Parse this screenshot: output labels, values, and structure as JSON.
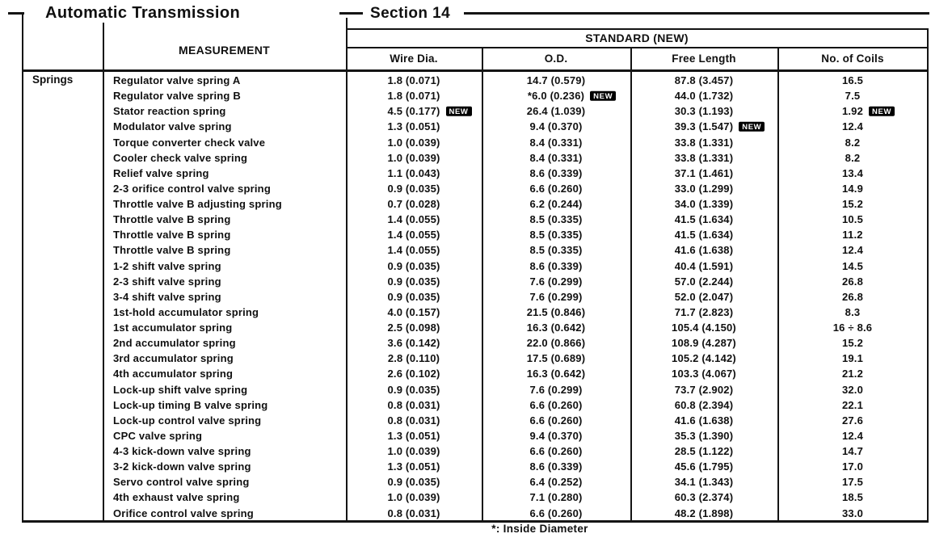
{
  "page": {
    "title_left": "Automatic Transmission",
    "title_right": "Section 14",
    "footnote": "*: Inside Diameter"
  },
  "table": {
    "group_label": "Springs",
    "measurement_header": "MEASUREMENT",
    "standard_header": "STANDARD (NEW)",
    "columns": [
      "Wire Dia.",
      "O.D.",
      "Free Length",
      "No. of Coils"
    ],
    "new_badge": "NEW",
    "badge_bg": "#000000",
    "badge_fg": "#ffffff",
    "rows": [
      {
        "name": "Regulator valve spring A",
        "wire_dia": "1.8 (0.071)",
        "od": "14.7 (0.579)",
        "free_length": "87.8 (3.457)",
        "coils": "16.5"
      },
      {
        "name": "Regulator valve spring B",
        "wire_dia": "1.8 (0.071)",
        "od": "*6.0 (0.236)",
        "free_length": "44.0 (1.732)",
        "coils": "7.5",
        "new": [
          "od"
        ]
      },
      {
        "name": "Stator reaction spring",
        "wire_dia": "4.5 (0.177)",
        "od": "26.4 (1.039)",
        "free_length": "30.3 (1.193)",
        "coils": "1.92",
        "new": [
          "wire_dia",
          "coils"
        ]
      },
      {
        "name": "Modulator valve spring",
        "wire_dia": "1.3 (0.051)",
        "od": "9.4 (0.370)",
        "free_length": "39.3 (1.547)",
        "coils": "12.4",
        "new": [
          "free_length"
        ]
      },
      {
        "name": "Torque converter check valve",
        "wire_dia": "1.0 (0.039)",
        "od": "8.4 (0.331)",
        "free_length": "33.8 (1.331)",
        "coils": "8.2"
      },
      {
        "name": "Cooler check valve spring",
        "wire_dia": "1.0 (0.039)",
        "od": "8.4 (0.331)",
        "free_length": "33.8 (1.331)",
        "coils": "8.2"
      },
      {
        "name": "Relief valve spring",
        "wire_dia": "1.1 (0.043)",
        "od": "8.6 (0.339)",
        "free_length": "37.1 (1.461)",
        "coils": "13.4"
      },
      {
        "name": "2-3 orifice control valve spring",
        "wire_dia": "0.9 (0.035)",
        "od": "6.6 (0.260)",
        "free_length": "33.0 (1.299)",
        "coils": "14.9"
      },
      {
        "name": "Throttle valve B adjusting spring",
        "wire_dia": "0.7 (0.028)",
        "od": "6.2 (0.244)",
        "free_length": "34.0 (1.339)",
        "coils": "15.2"
      },
      {
        "name": "Throttle valve B spring",
        "wire_dia": "1.4 (0.055)",
        "od": "8.5 (0.335)",
        "free_length": "41.5 (1.634)",
        "coils": "10.5"
      },
      {
        "name": "Throttle valve B spring",
        "wire_dia": "1.4 (0.055)",
        "od": "8.5 (0.335)",
        "free_length": "41.5 (1.634)",
        "coils": "11.2"
      },
      {
        "name": "Throttle valve B spring",
        "wire_dia": "1.4 (0.055)",
        "od": "8.5 (0.335)",
        "free_length": "41.6 (1.638)",
        "coils": "12.4"
      },
      {
        "name": "1-2 shift valve spring",
        "wire_dia": "0.9 (0.035)",
        "od": "8.6 (0.339)",
        "free_length": "40.4 (1.591)",
        "coils": "14.5"
      },
      {
        "name": "2-3 shift valve spring",
        "wire_dia": "0.9 (0.035)",
        "od": "7.6 (0.299)",
        "free_length": "57.0 (2.244)",
        "coils": "26.8"
      },
      {
        "name": "3-4 shift valve spring",
        "wire_dia": "0.9 (0.035)",
        "od": "7.6 (0.299)",
        "free_length": "52.0 (2.047)",
        "coils": "26.8"
      },
      {
        "name": "1st-hold accumulator spring",
        "wire_dia": "4.0 (0.157)",
        "od": "21.5 (0.846)",
        "free_length": "71.7 (2.823)",
        "coils": "8.3"
      },
      {
        "name": "1st accumulator spring",
        "wire_dia": "2.5 (0.098)",
        "od": "16.3 (0.642)",
        "free_length": "105.4 (4.150)",
        "coils": "16 ÷ 8.6"
      },
      {
        "name": "2nd accumulator spring",
        "wire_dia": "3.6 (0.142)",
        "od": "22.0 (0.866)",
        "free_length": "108.9 (4.287)",
        "coils": "15.2"
      },
      {
        "name": "3rd accumulator spring",
        "wire_dia": "2.8 (0.110)",
        "od": "17.5 (0.689)",
        "free_length": "105.2 (4.142)",
        "coils": "19.1"
      },
      {
        "name": "4th accumulator spring",
        "wire_dia": "2.6 (0.102)",
        "od": "16.3 (0.642)",
        "free_length": "103.3 (4.067)",
        "coils": "21.2"
      },
      {
        "name": "Lock-up shift valve spring",
        "wire_dia": "0.9 (0.035)",
        "od": "7.6 (0.299)",
        "free_length": "73.7 (2.902)",
        "coils": "32.0"
      },
      {
        "name": "Lock-up timing B valve spring",
        "wire_dia": "0.8 (0.031)",
        "od": "6.6 (0.260)",
        "free_length": "60.8 (2.394)",
        "coils": "22.1"
      },
      {
        "name": "Lock-up control valve spring",
        "wire_dia": "0.8 (0.031)",
        "od": "6.6 (0.260)",
        "free_length": "41.6 (1.638)",
        "coils": "27.6"
      },
      {
        "name": "CPC valve spring",
        "wire_dia": "1.3 (0.051)",
        "od": "9.4 (0.370)",
        "free_length": "35.3 (1.390)",
        "coils": "12.4"
      },
      {
        "name": "4-3 kick-down valve spring",
        "wire_dia": "1.0 (0.039)",
        "od": "6.6 (0.260)",
        "free_length": "28.5 (1.122)",
        "coils": "14.7"
      },
      {
        "name": "3-2 kick-down valve spring",
        "wire_dia": "1.3 (0.051)",
        "od": "8.6 (0.339)",
        "free_length": "45.6 (1.795)",
        "coils": "17.0"
      },
      {
        "name": "Servo control valve spring",
        "wire_dia": "0.9 (0.035)",
        "od": "6.4 (0.252)",
        "free_length": "34.1 (1.343)",
        "coils": "17.5"
      },
      {
        "name": "4th exhaust valve spring",
        "wire_dia": "1.0 (0.039)",
        "od": "7.1 (0.280)",
        "free_length": "60.3 (2.374)",
        "coils": "18.5"
      },
      {
        "name": "Orifice control valve spring",
        "wire_dia": "0.8 (0.031)",
        "od": "6.6 (0.260)",
        "free_length": "48.2 (1.898)",
        "coils": "33.0"
      }
    ]
  }
}
